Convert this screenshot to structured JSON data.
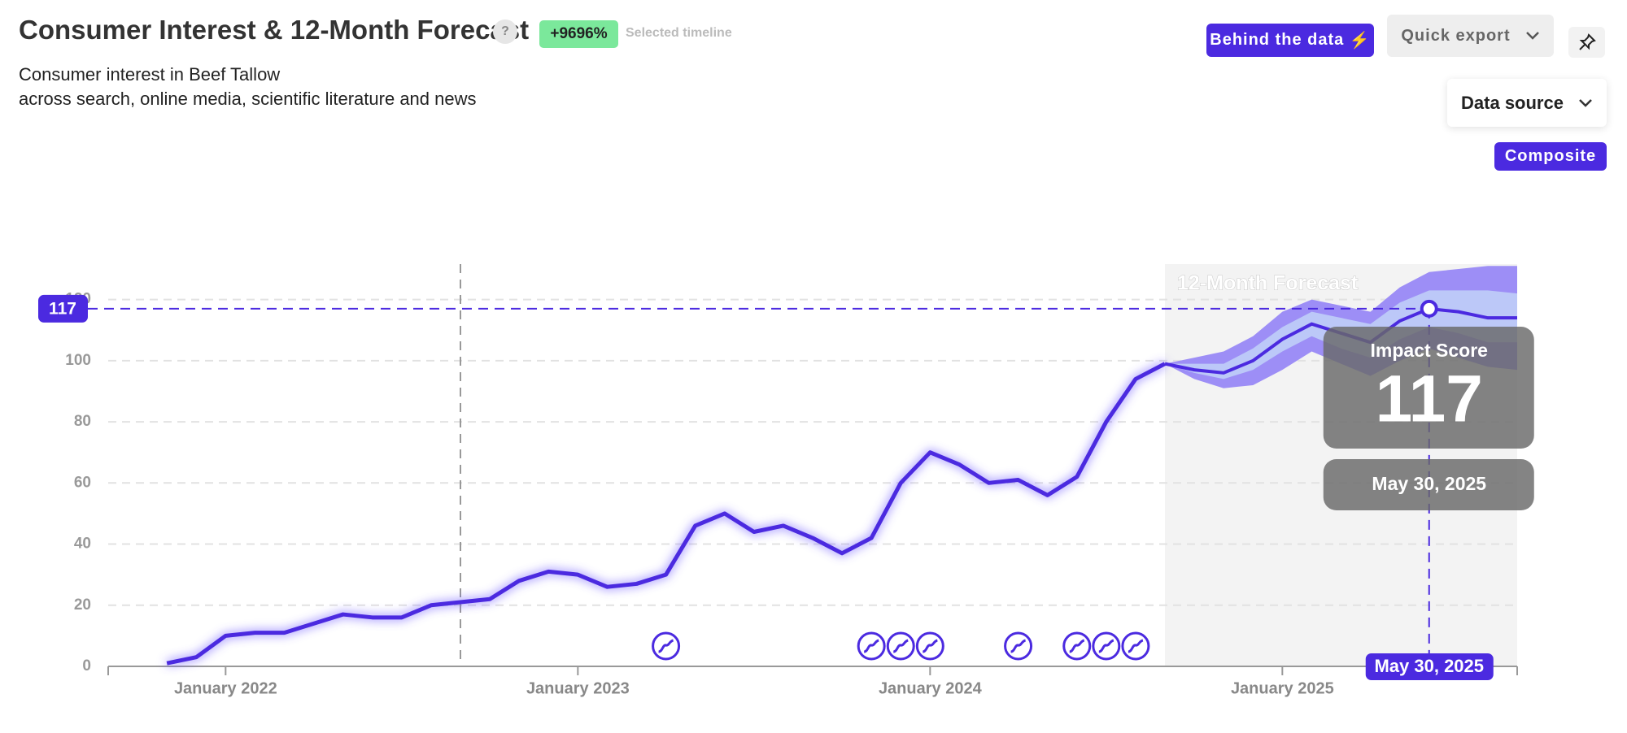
{
  "header": {
    "help": "?",
    "change_badge": "+9696%",
    "change_caption": "Selected timeline"
  },
  "toolbar": {
    "behind": "Behind the data",
    "export": "Quick export",
    "data_source": "Data source",
    "composite": "Composite"
  },
  "chart_data": {
    "type": "line",
    "title": "Consumer Interest & 12-Month Forecast",
    "subtitle": [
      "Consumer interest in Beef Tallow",
      "across search, online media, scientific literature and news"
    ],
    "x": [
      "2021-11",
      "2021-12",
      "2022-01",
      "2022-02",
      "2022-03",
      "2022-04",
      "2022-05",
      "2022-06",
      "2022-07",
      "2022-08",
      "2022-09",
      "2022-10",
      "2022-11",
      "2022-12",
      "2023-01",
      "2023-02",
      "2023-03",
      "2023-04",
      "2023-05",
      "2023-06",
      "2023-07",
      "2023-08",
      "2023-09",
      "2023-10",
      "2023-11",
      "2023-12",
      "2024-01",
      "2024-02",
      "2024-03",
      "2024-04",
      "2024-05",
      "2024-06",
      "2024-07",
      "2024-08",
      "2024-09"
    ],
    "series": [
      {
        "color": "#4b2ae0",
        "values": [
          1,
          3,
          10,
          11,
          11,
          14,
          17,
          16,
          16,
          20,
          21,
          22,
          28,
          31,
          30,
          26,
          27,
          30,
          46,
          50,
          44,
          46,
          42,
          37,
          42,
          60,
          70,
          66,
          60,
          61,
          56,
          62,
          80,
          94,
          99
        ]
      }
    ],
    "forecast": {
      "label": "12-Month Forecast",
      "color": "#4b2ae0",
      "shade": "#f3f3f3",
      "x": [
        "2024-09",
        "2024-10",
        "2024-11",
        "2024-12",
        "2025-01",
        "2025-02",
        "2025-03",
        "2025-04",
        "2025-05",
        "2025-06",
        "2025-07",
        "2025-08",
        "2025-09"
      ],
      "values": [
        99,
        97,
        96,
        100,
        107,
        112,
        109,
        106,
        113,
        117,
        116,
        114,
        114
      ],
      "bands": [
        {
          "color": "#9d8ef6",
          "lower": [
            99,
            94,
            91,
            92,
            97,
            103,
            99,
            95,
            100,
            104,
            101,
            98,
            97
          ],
          "upper": [
            99,
            101,
            103,
            108,
            116,
            120,
            118,
            116,
            124,
            129,
            130,
            131,
            131
          ]
        },
        {
          "color": "#bcc8f8",
          "lower": [
            99,
            96,
            94,
            97,
            103,
            108,
            104,
            101,
            107,
            111,
            109,
            106,
            106
          ],
          "upper": [
            99,
            99,
            99,
            104,
            111,
            116,
            114,
            112,
            119,
            123,
            123,
            123,
            122
          ]
        }
      ]
    },
    "xlim": [
      "2021-09",
      "2025-09"
    ],
    "xticks": [
      {
        "value": "2022-01",
        "label": "January 2022"
      },
      {
        "value": "2023-01",
        "label": "January 2023"
      },
      {
        "value": "2024-01",
        "label": "January 2024"
      },
      {
        "value": "2025-01",
        "label": "January 2025"
      }
    ],
    "ylim": [
      0,
      130
    ],
    "yticks": [
      0,
      20,
      40,
      60,
      80,
      100,
      120
    ],
    "grid": true,
    "reference_x": "2022-09",
    "events": {
      "color": "#4b2ae0",
      "x": [
        "2023-04",
        "2023-11",
        "2023-12",
        "2024-01",
        "2024-04",
        "2024-06",
        "2024-07",
        "2024-08"
      ]
    },
    "highlight": {
      "x": "2025-06",
      "value": 117,
      "title": "Impact Score",
      "label": "May 30, 2025"
    }
  }
}
